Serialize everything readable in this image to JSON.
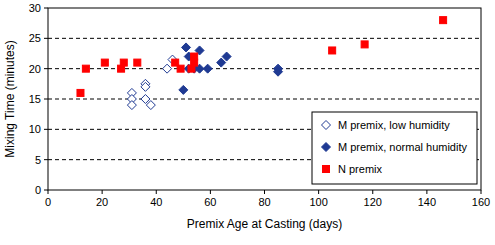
{
  "chart_data": {
    "type": "scatter",
    "x_label": "Premix Age at Casting (days)",
    "y_label": "Mixing Time (minutes)",
    "xlim": [
      0,
      160
    ],
    "xticks": [
      0,
      20,
      40,
      60,
      80,
      100,
      120,
      140,
      160
    ],
    "ylim": [
      0,
      30
    ],
    "yticks": [
      0,
      5,
      10,
      15,
      20,
      25,
      30
    ],
    "grid": true,
    "legend": "lower right",
    "series": [
      {
        "name": "M premix, low humidity",
        "color": "#1f3a93",
        "marker": "diamond-open",
        "x": [
          31,
          31,
          31,
          36,
          36,
          36,
          38,
          44,
          46
        ],
        "values": [
          16,
          15,
          14,
          17.5,
          17,
          15,
          14,
          20,
          21.5
        ]
      },
      {
        "name": "M premix, normal humidity",
        "color": "#1f3a93",
        "marker": "diamond",
        "x": [
          50,
          51,
          52,
          52,
          54,
          56,
          56,
          59,
          64,
          66,
          85,
          85
        ],
        "values": [
          16.5,
          23.5,
          22,
          20,
          20,
          23,
          20,
          20,
          21,
          22,
          20,
          19.5
        ]
      },
      {
        "name": "N premix",
        "color": "#ff0000",
        "marker": "square",
        "x": [
          12,
          14,
          21,
          27,
          28,
          33,
          47,
          49,
          53,
          54,
          54,
          105,
          117,
          146
        ],
        "values": [
          16,
          20,
          21,
          20,
          21,
          21,
          21,
          20,
          20,
          22,
          21,
          23,
          24,
          28
        ]
      }
    ]
  }
}
